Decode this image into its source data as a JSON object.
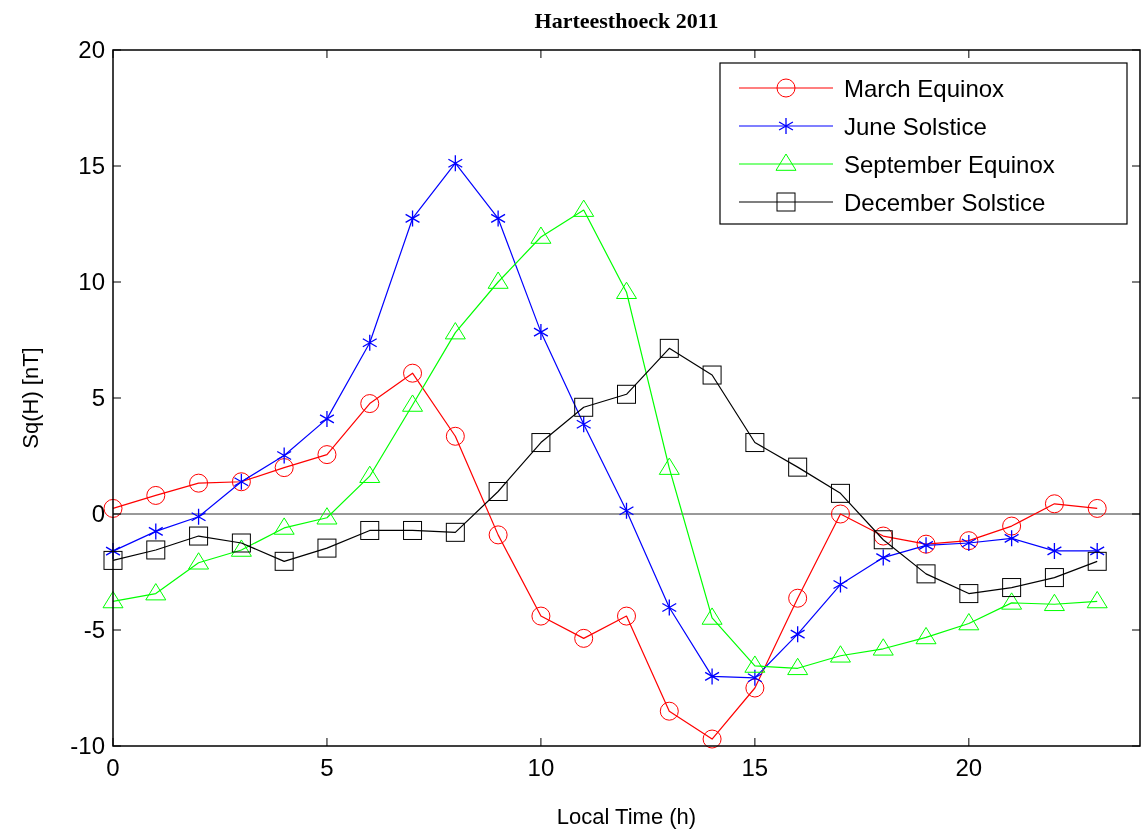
{
  "chart_data": {
    "type": "line",
    "title": "Harteesthoeck 2011",
    "xlabel": "Local Time (h)",
    "ylabel": "Sq(H) [nT]",
    "x": [
      0,
      1,
      2,
      3,
      4,
      5,
      6,
      7,
      8,
      9,
      10,
      11,
      12,
      13,
      14,
      15,
      16,
      17,
      18,
      19,
      20,
      21,
      22,
      23
    ],
    "xlim": [
      0,
      24
    ],
    "xticks": [
      0,
      5,
      10,
      15,
      20
    ],
    "ylim": [
      -10,
      20
    ],
    "yticks": [
      -10,
      -5,
      0,
      5,
      10,
      15,
      20
    ],
    "grid": false,
    "legend": "top right",
    "line_style": "solid",
    "ref_lines": [
      {
        "axis": "y",
        "value": 0,
        "color": "#000000"
      }
    ],
    "series": [
      {
        "name": "March Equinox",
        "color": "#ff0000",
        "marker": "circle",
        "values": [
          0.24,
          0.8,
          1.33,
          1.39,
          2.0,
          2.56,
          4.76,
          6.07,
          3.35,
          -0.9,
          -4.4,
          -5.36,
          -4.4,
          -8.5,
          -9.7,
          -7.5,
          -3.63,
          0,
          -0.95,
          -1.3,
          -1.15,
          -0.52,
          0.44,
          0.24
        ]
      },
      {
        "name": "June Solstice",
        "color": "#0000ff",
        "marker": "cross",
        "values": [
          -1.6,
          -0.75,
          -0.12,
          1.39,
          2.52,
          4.1,
          7.38,
          12.74,
          15.12,
          12.74,
          7.84,
          3.87,
          0.14,
          -4.03,
          -7.0,
          -7.06,
          -5.18,
          -3.04,
          -1.88,
          -1.35,
          -1.25,
          -1.05,
          -1.59,
          -1.59
        ]
      },
      {
        "name": "September Equinox",
        "color": "#00ff00",
        "marker": "triangle",
        "values": [
          -3.77,
          -3.43,
          -2.1,
          -1.55,
          -0.6,
          -0.16,
          1.63,
          4.7,
          7.82,
          10.0,
          11.94,
          13.1,
          9.56,
          1.98,
          -4.48,
          -6.55,
          -6.65,
          -6.11,
          -5.81,
          -5.32,
          -4.72,
          -3.83,
          -3.89,
          -3.77
        ]
      },
      {
        "name": "December Solstice",
        "color": "#000000",
        "marker": "square",
        "values": [
          -2.0,
          -1.55,
          -0.95,
          -1.25,
          -2.04,
          -1.47,
          -0.71,
          -0.71,
          -0.79,
          0.97,
          3.08,
          4.6,
          5.16,
          7.14,
          5.99,
          3.08,
          2.02,
          0.89,
          -1.11,
          -2.58,
          -3.43,
          -3.17,
          -2.74,
          -2.04
        ]
      }
    ]
  }
}
